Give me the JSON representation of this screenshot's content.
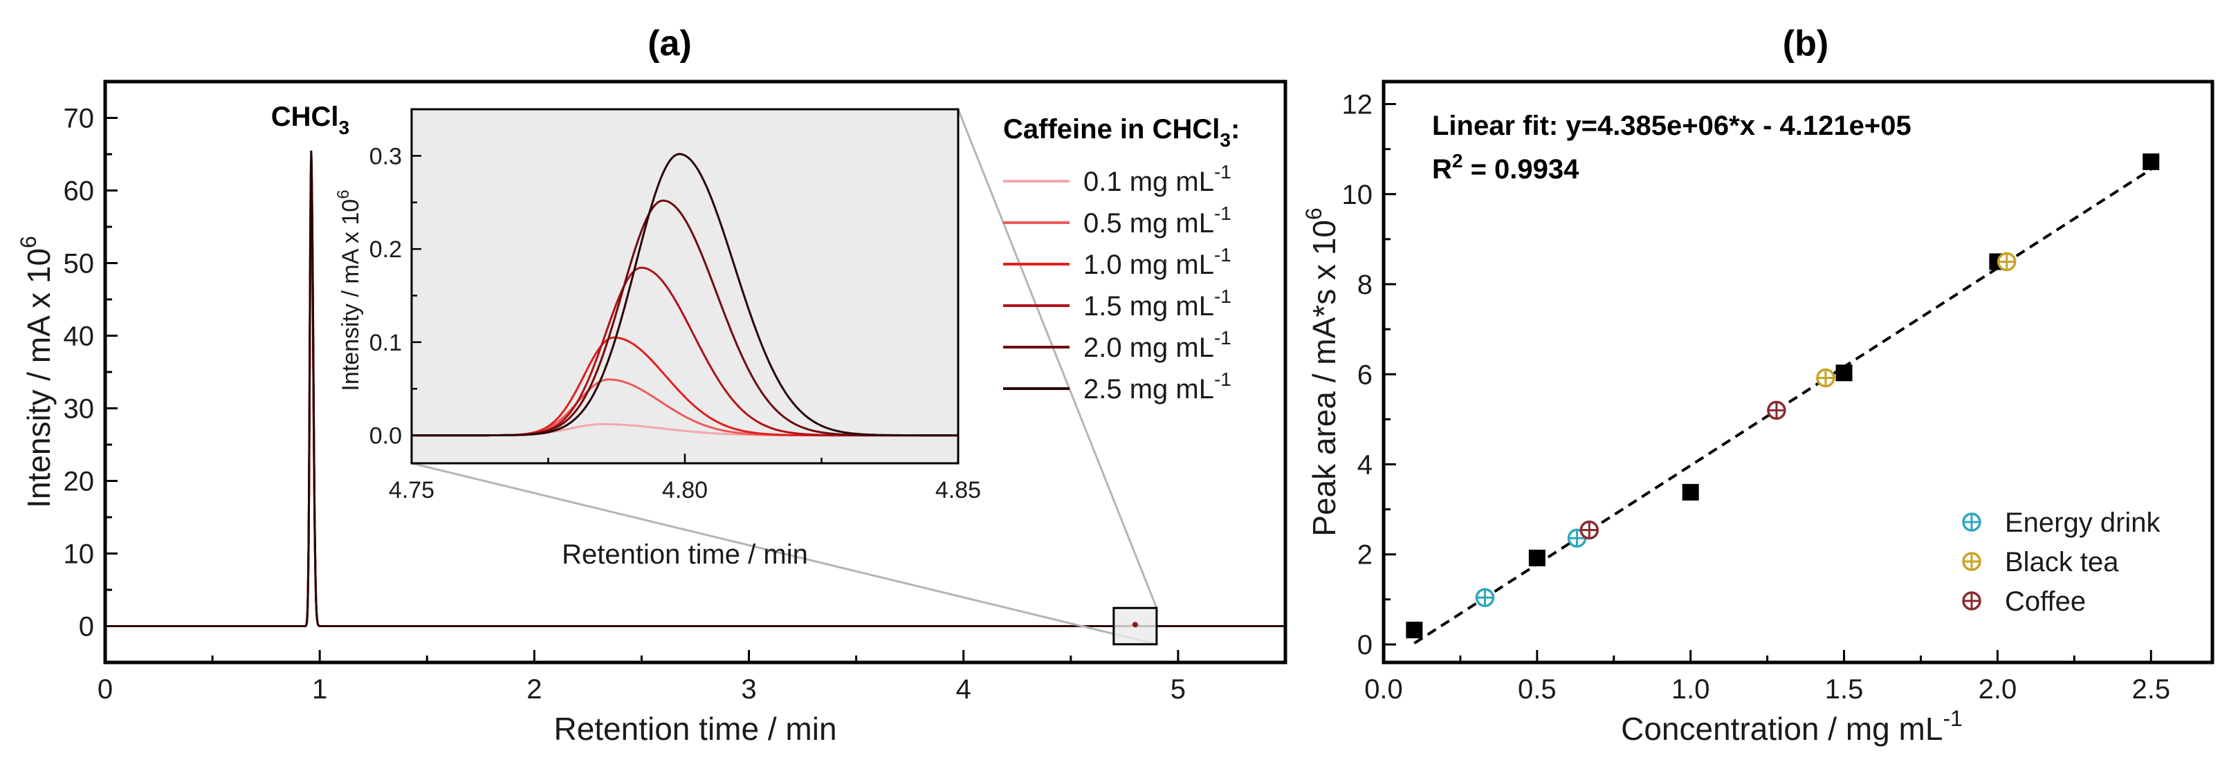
{
  "chart_data": [
    {
      "panel": "(a)",
      "type": "line",
      "title": "(a)",
      "xlabel": "Retention time / min",
      "ylabel": "Intensity  / mA x 10",
      "ylabel_sup": "6",
      "xlim": [
        0,
        5.5
      ],
      "ylim": [
        -5,
        75
      ],
      "xticks": [
        0,
        1,
        2,
        3,
        4,
        5
      ],
      "yticks": [
        0,
        10,
        20,
        30,
        40,
        50,
        60,
        70
      ],
      "peak_label": "CHCl",
      "peak_label_sub": "3",
      "main_peak": {
        "x": 0.96,
        "y": 65.5
      },
      "zoom_box": {
        "x": [
          4.7,
          4.9
        ],
        "y": [
          -2.5,
          2.5
        ]
      },
      "legend_title": "Caffeine in CHCl",
      "legend_title_sub": "3",
      "legend_title_end": ":",
      "series": [
        {
          "name": "0.1 mg mL",
          "sup": "-1",
          "color": "#f4a6ad",
          "peak_x": 4.785,
          "peak_y": 0.012,
          "sigma_l": 0.006,
          "sigma_r": 0.011
        },
        {
          "name": "0.5 mg mL",
          "sup": "-1",
          "color": "#ec5b5b",
          "peak_x": 4.786,
          "peak_y": 0.06,
          "sigma_l": 0.0055,
          "sigma_r": 0.0095
        },
        {
          "name": "1.0 mg mL",
          "sup": "-1",
          "color": "#e0201f",
          "peak_x": 4.787,
          "peak_y": 0.105,
          "sigma_l": 0.0055,
          "sigma_r": 0.0095
        },
        {
          "name": "1.5 mg mL",
          "sup": "-1",
          "color": "#b01418",
          "peak_x": 4.792,
          "peak_y": 0.18,
          "sigma_l": 0.0065,
          "sigma_r": 0.0095
        },
        {
          "name": "2.0 mg mL",
          "sup": "-1",
          "color": "#6e0d10",
          "peak_x": 4.796,
          "peak_y": 0.252,
          "sigma_l": 0.0075,
          "sigma_r": 0.0098
        },
        {
          "name": "2.5 mg mL",
          "sup": "-1",
          "color": "#2a0606",
          "peak_x": 4.799,
          "peak_y": 0.302,
          "sigma_l": 0.008,
          "sigma_r": 0.01
        }
      ],
      "inset": {
        "xlabel": "Retention time / min",
        "ylabel": "Intensity / mA x 10",
        "ylabel_sup": "6",
        "xlim": [
          4.75,
          4.85
        ],
        "ylim": [
          -0.03,
          0.35
        ],
        "xticks": [
          "4.75",
          "4.80",
          "4.85"
        ],
        "yticks": [
          "0.0",
          "0.1",
          "0.2",
          "0.3"
        ],
        "background": "#ebebeb"
      }
    },
    {
      "panel": "(b)",
      "type": "scatter",
      "title": "(b)",
      "xlabel": "Concentration / mg mL",
      "xlabel_sup": "-1",
      "ylabel": "Peak area / mA*s x 10",
      "ylabel_sup": "6",
      "xlim": [
        0.0,
        2.7
      ],
      "ylim": [
        -0.4,
        12.5
      ],
      "xticks": [
        "0.0",
        "0.5",
        "1.0",
        "1.5",
        "2.0",
        "2.5"
      ],
      "yticks": [
        "0",
        "2",
        "4",
        "6",
        "8",
        "10",
        "12"
      ],
      "fit_text": "Linear fit: y=4.385e+06*x - 4.121e+05",
      "r2_label": "R",
      "r2_sup": "2",
      "r2_value": " = 0.9934",
      "fit": {
        "slope": 4.385,
        "intercept": -0.4121,
        "x_range": [
          0.1,
          2.5
        ]
      },
      "standards": {
        "x": [
          0.1,
          0.5,
          1.0,
          1.5,
          2.0,
          2.5
        ],
        "y": [
          0.32,
          1.92,
          3.38,
          6.03,
          8.5,
          10.72
        ]
      },
      "series": [
        {
          "name": "Energy drink",
          "color": "#2fa6bd",
          "x": [
            0.33,
            0.63
          ],
          "y": [
            1.04,
            2.36
          ]
        },
        {
          "name": "Black tea",
          "color": "#c9a227",
          "x": [
            1.44,
            2.03
          ],
          "y": [
            5.92,
            8.5
          ]
        },
        {
          "name": "Coffee",
          "color": "#8a2a2e",
          "x": [
            0.67,
            1.28
          ],
          "y": [
            2.54,
            5.2
          ]
        }
      ]
    }
  ]
}
